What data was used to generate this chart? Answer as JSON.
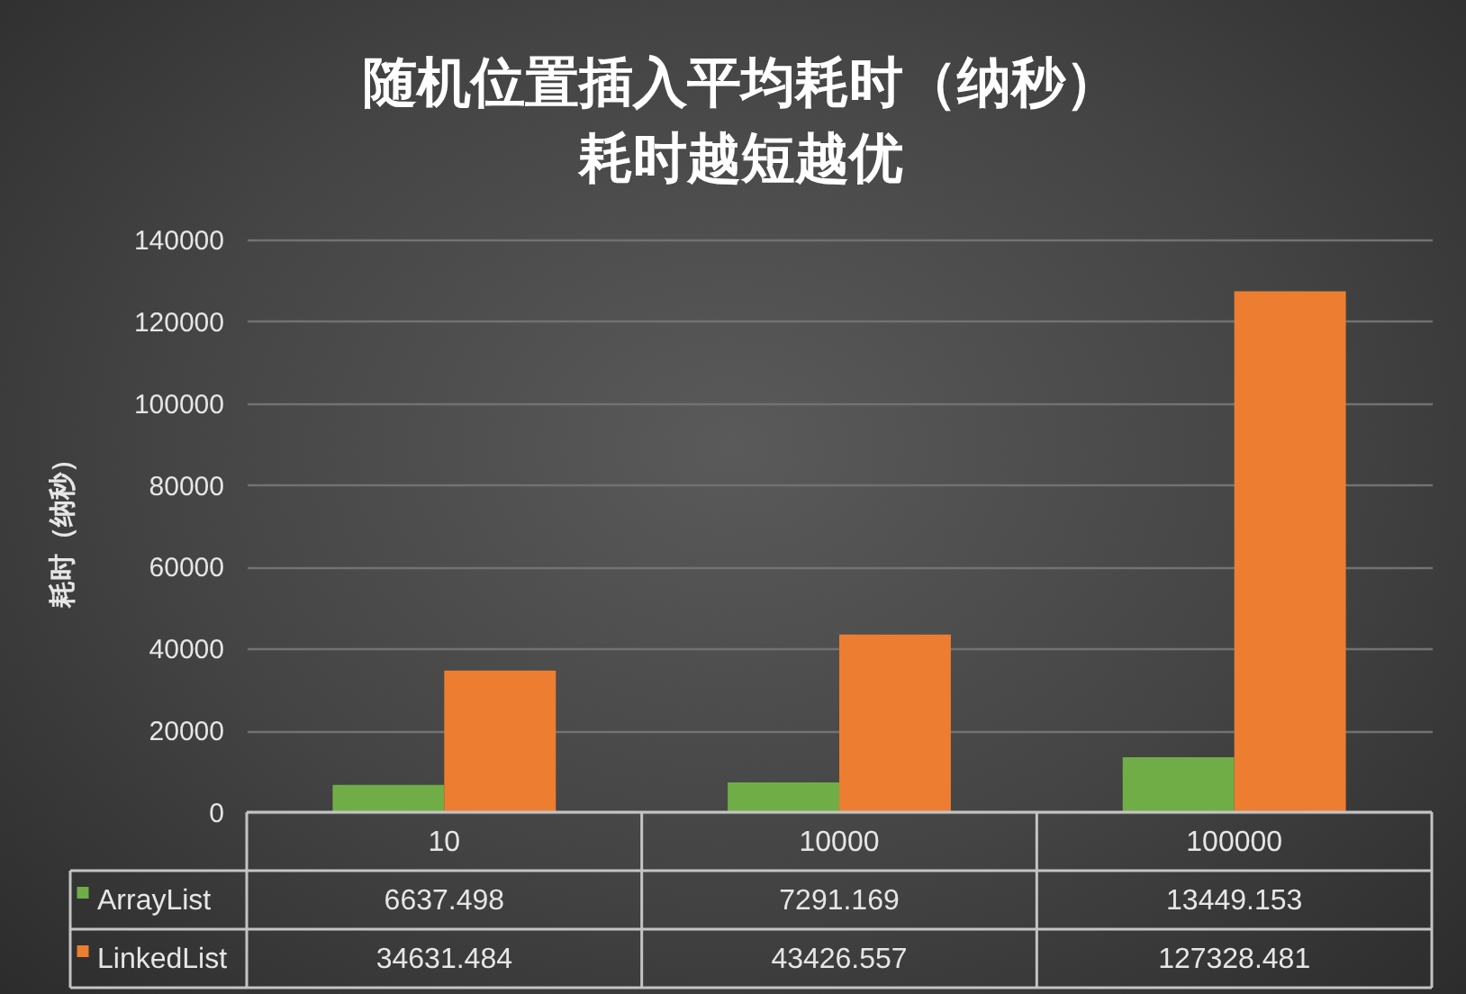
{
  "chart_data": {
    "type": "bar",
    "title": "随机位置插入平均耗时（纳秒）",
    "subtitle": "耗时越短越优",
    "ylabel": "耗时（纳秒）",
    "categories": [
      "10",
      "10000",
      "100000"
    ],
    "series": [
      {
        "name": "ArrayList",
        "color": "#70ad47",
        "values": [
          6637.498,
          7291.169,
          13449.153
        ]
      },
      {
        "name": "LinkedList",
        "color": "#ed7d31",
        "values": [
          34631.484,
          43426.557,
          127328.481
        ]
      }
    ],
    "ylim": [
      0,
      140000
    ],
    "yticks": [
      0,
      20000,
      40000,
      60000,
      80000,
      100000,
      120000,
      140000
    ],
    "grid": "y",
    "legend": "bottom left",
    "data_labels": true
  }
}
